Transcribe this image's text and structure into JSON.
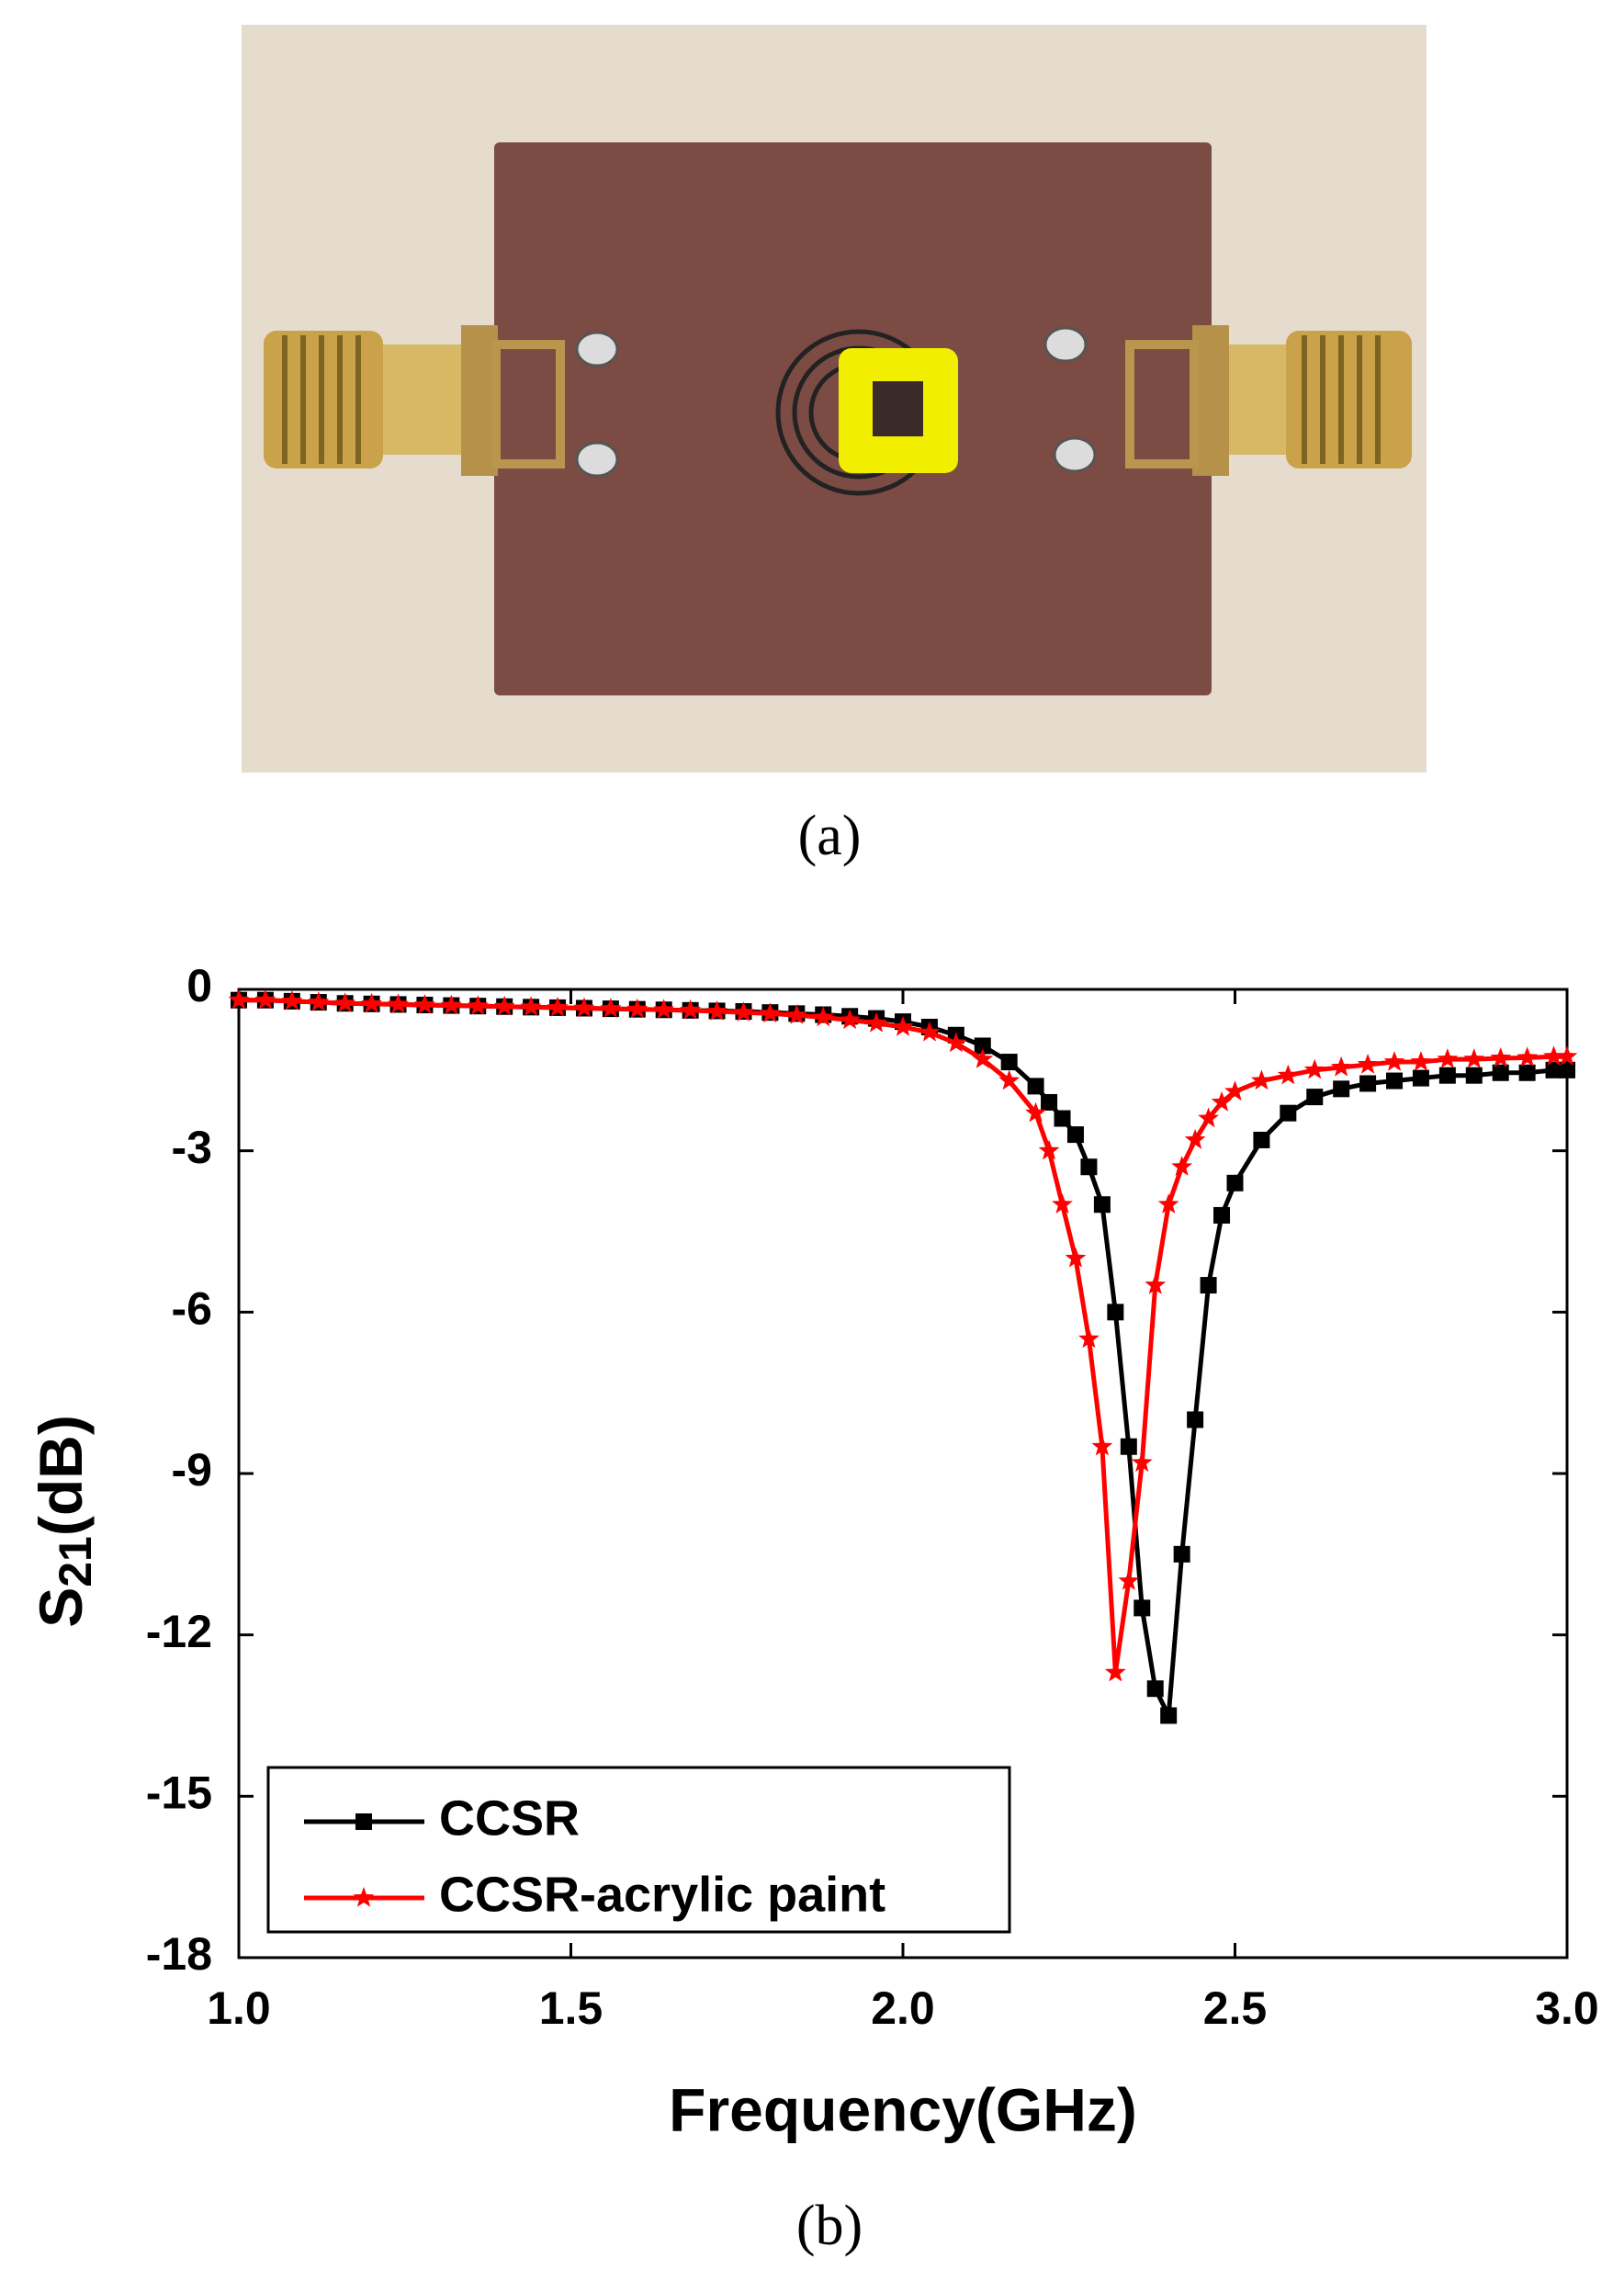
{
  "figure": {
    "caption_a": "(a)",
    "caption_b": "(b)"
  },
  "chart_data": {
    "type": "line",
    "xlabel": "Frequency(GHz)",
    "ylabel": [
      "S",
      "21",
      "(dB)"
    ],
    "x": [
      1,
      1.04,
      1.08,
      1.12,
      1.16,
      1.2,
      1.24,
      1.28,
      1.32,
      1.36,
      1.4,
      1.44,
      1.48,
      1.52,
      1.56,
      1.6,
      1.64,
      1.68,
      1.72,
      1.76,
      1.8,
      1.84,
      1.88,
      1.92,
      1.96,
      2,
      2.04,
      2.08,
      2.12,
      2.16,
      2.2,
      2.22,
      2.24,
      2.26,
      2.28,
      2.3,
      2.32,
      2.34,
      2.36,
      2.38,
      2.4,
      2.42,
      2.44,
      2.46,
      2.48,
      2.5,
      2.54,
      2.58,
      2.62,
      2.66,
      2.7,
      2.74,
      2.78,
      2.82,
      2.86,
      2.9,
      2.94,
      2.98,
      3
    ],
    "series": [
      {
        "name": "CCSR",
        "color": "#000000",
        "marker": "square",
        "values": [
          -0.2,
          -0.2,
          -0.22,
          -0.24,
          -0.26,
          -0.27,
          -0.28,
          -0.29,
          -0.3,
          -0.31,
          -0.32,
          -0.33,
          -0.34,
          -0.35,
          -0.36,
          -0.37,
          -0.38,
          -0.39,
          -0.4,
          -0.41,
          -0.43,
          -0.45,
          -0.47,
          -0.5,
          -0.54,
          -0.6,
          -0.7,
          -0.85,
          -1.05,
          -1.35,
          -1.8,
          -2.1,
          -2.4,
          -2.7,
          -3.3,
          -4.0,
          -6.0,
          -8.5,
          -11.5,
          -13.0,
          -13.5,
          -10.5,
          -8.0,
          -5.5,
          -4.2,
          -3.6,
          -2.8,
          -2.3,
          -2.0,
          -1.85,
          -1.75,
          -1.7,
          -1.65,
          -1.6,
          -1.6,
          -1.55,
          -1.55,
          -1.5,
          -1.5
        ]
      },
      {
        "name": "CCSR-acrylic paint",
        "color": "#ff0000",
        "marker": "star",
        "values": [
          -0.2,
          -0.2,
          -0.22,
          -0.24,
          -0.26,
          -0.27,
          -0.28,
          -0.29,
          -0.3,
          -0.31,
          -0.32,
          -0.33,
          -0.34,
          -0.35,
          -0.36,
          -0.37,
          -0.38,
          -0.39,
          -0.41,
          -0.43,
          -0.45,
          -0.48,
          -0.52,
          -0.57,
          -0.63,
          -0.7,
          -0.8,
          -1.0,
          -1.3,
          -1.7,
          -2.3,
          -3.0,
          -4.0,
          -5.0,
          -6.5,
          -8.5,
          -12.7,
          -11.0,
          -8.8,
          -5.5,
          -4.0,
          -3.3,
          -2.8,
          -2.4,
          -2.1,
          -1.9,
          -1.7,
          -1.6,
          -1.5,
          -1.45,
          -1.4,
          -1.35,
          -1.35,
          -1.3,
          -1.3,
          -1.28,
          -1.27,
          -1.25,
          -1.25
        ]
      }
    ],
    "xlim": [
      1,
      3
    ],
    "xticks": [
      {
        "value": 1,
        "label": "1.0"
      },
      {
        "value": 1.5,
        "label": "1.5"
      },
      {
        "value": 2,
        "label": "2.0"
      },
      {
        "value": 2.5,
        "label": "2.5"
      },
      {
        "value": 3,
        "label": "3.0"
      }
    ],
    "ylim": [
      -18,
      0
    ],
    "yticks": [
      0,
      -3,
      -6,
      -9,
      -12,
      -15,
      -18
    ],
    "legend": "lower left"
  }
}
